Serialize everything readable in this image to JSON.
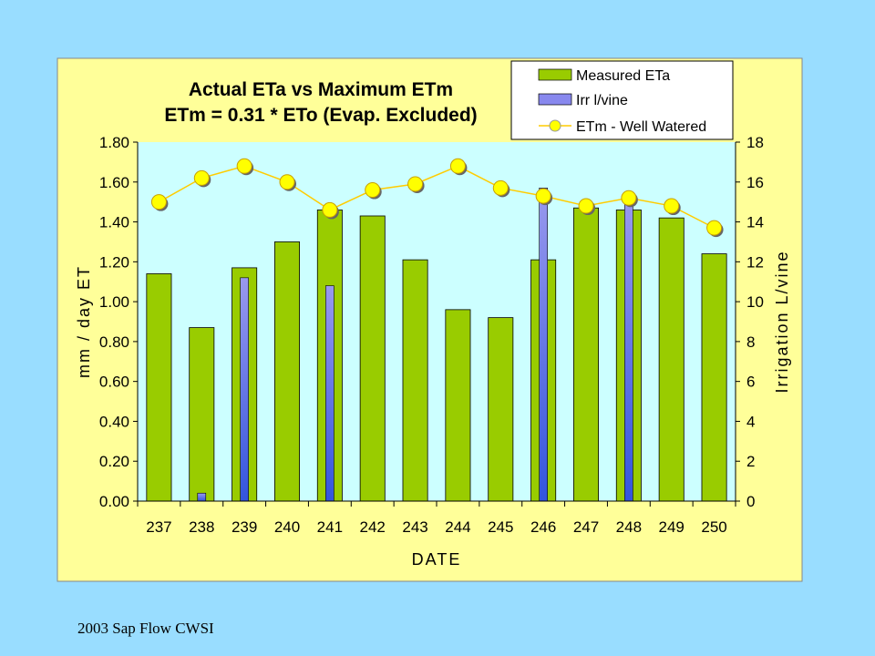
{
  "caption": "2003 Sap Flow CWSI",
  "colors": {
    "slide_background": "#99ddff",
    "chart_area": "#ffff99",
    "plot_area": "#ccffff",
    "bar_eta": "#99cc00",
    "bar_irr": "#8888ee",
    "line_etm": "#ffcc00",
    "marker_etm": "#ffff00"
  },
  "chart_data": {
    "type": "bar",
    "title": [
      "Actual ETa vs Maximum ETm",
      "ETm = 0.31 * ETo (Evap. Excluded)"
    ],
    "xlabel": "DATE",
    "ylabel": "mm / day ET",
    "y2label": "Irrigation L/vine",
    "ylim": [
      0,
      1.8
    ],
    "y2lim": [
      0,
      18
    ],
    "yticks": [
      "0.00",
      "0.20",
      "0.40",
      "0.60",
      "0.80",
      "1.00",
      "1.20",
      "1.40",
      "1.60",
      "1.80"
    ],
    "y2ticks": [
      "0",
      "2",
      "4",
      "6",
      "8",
      "10",
      "12",
      "14",
      "16",
      "18"
    ],
    "categories": [
      "237",
      "238",
      "239",
      "240",
      "241",
      "242",
      "243",
      "244",
      "245",
      "246",
      "247",
      "248",
      "249",
      "250"
    ],
    "legend_position": "top-right",
    "grid": false,
    "series": [
      {
        "name": "Measured ETa",
        "type": "bar",
        "axis": "left",
        "values": [
          1.14,
          0.87,
          1.17,
          1.3,
          1.46,
          1.43,
          1.21,
          0.96,
          0.92,
          1.21,
          1.47,
          1.46,
          1.42,
          1.24
        ]
      },
      {
        "name": "Irr l/vine",
        "type": "bar",
        "axis": "right",
        "values": [
          0,
          0.4,
          11.2,
          0,
          10.8,
          0,
          0,
          0,
          0,
          15.7,
          0,
          15.1,
          0,
          0
        ]
      },
      {
        "name": "ETm - Well Watered",
        "type": "line",
        "axis": "left",
        "values": [
          1.5,
          1.62,
          1.68,
          1.6,
          1.46,
          1.56,
          1.59,
          1.68,
          1.57,
          1.53,
          1.48,
          1.52,
          1.48,
          1.37
        ]
      }
    ]
  }
}
